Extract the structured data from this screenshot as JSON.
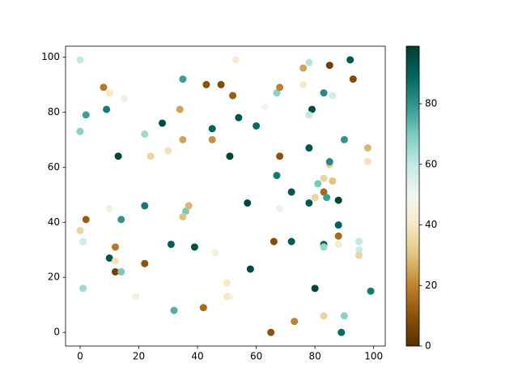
{
  "chart_data": {
    "type": "scatter",
    "x": [
      0,
      8,
      10,
      15,
      9,
      2,
      0,
      28,
      22,
      13,
      24,
      30,
      35,
      34,
      35,
      43,
      48,
      52,
      53,
      45,
      45,
      54,
      51,
      60,
      63,
      67,
      68,
      76,
      76,
      78,
      85,
      92,
      93,
      83,
      86,
      79,
      78,
      78,
      68,
      67,
      72,
      57,
      68,
      78,
      80,
      81,
      83,
      85,
      85,
      86,
      83,
      84,
      88,
      90,
      98,
      98,
      88,
      88,
      88,
      83,
      83,
      95,
      95,
      95,
      80,
      99,
      90,
      83,
      89,
      73,
      65,
      66,
      72,
      58,
      50,
      51,
      50,
      46,
      42,
      39,
      31,
      32,
      36,
      37,
      35,
      22,
      14,
      10,
      2,
      0,
      1,
      1,
      10,
      12,
      12,
      12,
      14,
      22,
      19
    ],
    "y": [
      99,
      89,
      87,
      85,
      81,
      79,
      73,
      76,
      72,
      64,
      64,
      66,
      70,
      81,
      92,
      90,
      90,
      86,
      99,
      74,
      70,
      78,
      64,
      75,
      82,
      87,
      89,
      96,
      90,
      98,
      97,
      99,
      92,
      87,
      86,
      81,
      79,
      67,
      64,
      57,
      51,
      47,
      45,
      47,
      49,
      54,
      56,
      61,
      62,
      55,
      51,
      49,
      48,
      70,
      67,
      62,
      39,
      35,
      32,
      32,
      31,
      33,
      30,
      28,
      16,
      15,
      6,
      6,
      0,
      4,
      0,
      33,
      33,
      23,
      18,
      13,
      13,
      29,
      9,
      31,
      32,
      8,
      44,
      46,
      42,
      46,
      41,
      45,
      41,
      37,
      33,
      16,
      27,
      26,
      31,
      22,
      22,
      25,
      13
    ],
    "c": [
      60,
      18,
      40,
      45,
      85,
      78,
      68,
      95,
      65,
      97,
      35,
      38,
      25,
      25,
      78,
      10,
      8,
      12,
      42,
      90,
      22,
      93,
      97,
      88,
      50,
      68,
      20,
      25,
      40,
      62,
      5,
      92,
      8,
      82,
      57,
      95,
      60,
      93,
      10,
      85,
      93,
      96,
      52,
      92,
      35,
      70,
      35,
      33,
      82,
      30,
      15,
      78,
      97,
      80,
      28,
      38,
      90,
      15,
      42,
      88,
      66,
      60,
      58,
      35,
      97,
      85,
      68,
      35,
      88,
      20,
      10,
      8,
      92,
      96,
      40,
      50,
      40,
      45,
      15,
      95,
      90,
      75,
      70,
      28,
      30,
      85,
      80,
      45,
      12,
      35,
      58,
      65,
      93,
      38,
      18,
      5,
      70,
      10,
      45
    ],
    "colormap": [
      "#543005",
      "#8c510a",
      "#bf812d",
      "#dfc27d",
      "#f6e8c3",
      "#f5f5f5",
      "#c7eae5",
      "#80cdc1",
      "#35978f",
      "#01665e",
      "#003c30"
    ],
    "clim": [
      0,
      99
    ],
    "cticks": [
      0,
      20,
      40,
      60,
      80
    ],
    "xlim": [
      -4.95,
      103.95
    ],
    "ylim": [
      -4.95,
      103.95
    ],
    "xticks": [
      0,
      20,
      40,
      60,
      80,
      100
    ],
    "yticks": [
      0,
      20,
      40,
      60,
      80,
      100
    ]
  }
}
